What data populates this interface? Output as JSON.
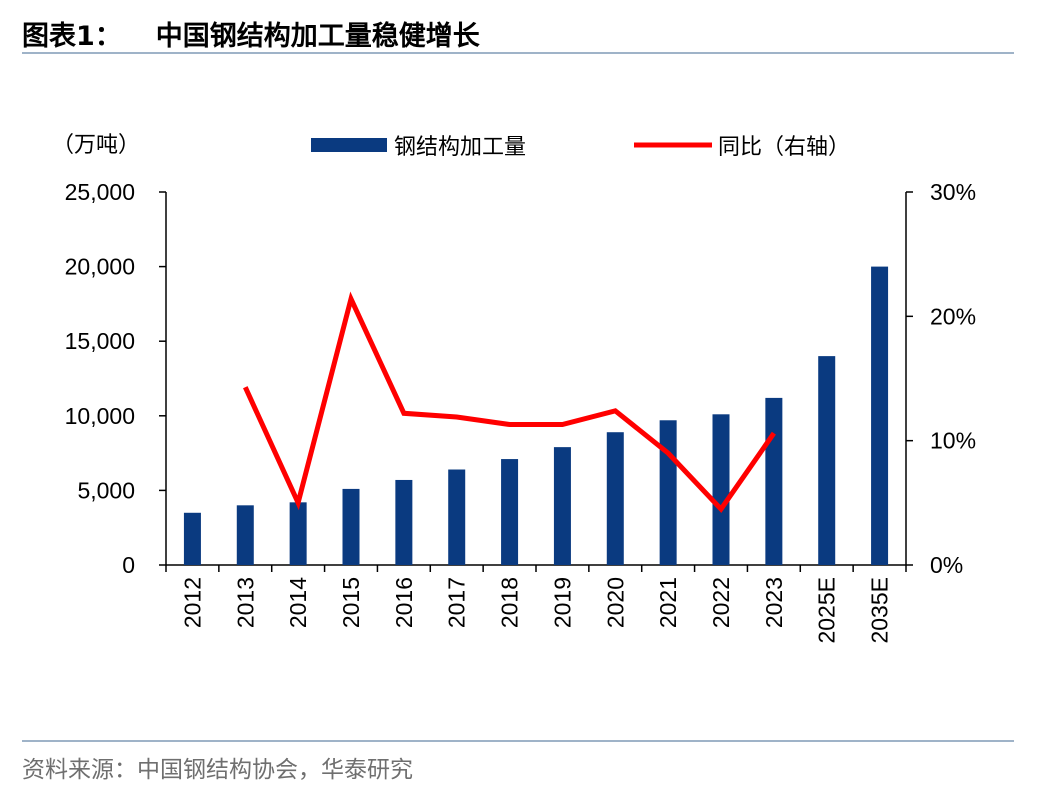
{
  "figure": {
    "title_prefix": "图表1：",
    "title": "中国钢结构加工量稳健增长",
    "source": "资料来源：中国钢结构协会，华泰研究"
  },
  "colors": {
    "bar": "#0a3a80",
    "line": "#ff0000",
    "axis": "#000000",
    "rule": "#9fb3c8",
    "source_text": "#6f6f6f"
  },
  "chart_data": {
    "type": "bar",
    "title": "中国钢结构加工量稳健增长",
    "categories": [
      "2012",
      "2013",
      "2014",
      "2015",
      "2016",
      "2017",
      "2018",
      "2019",
      "2020",
      "2021",
      "2022",
      "2023",
      "2025E",
      "2035E"
    ],
    "series": [
      {
        "name": "钢结构加工量",
        "type": "bar",
        "axis": "left",
        "values": [
          3500,
          4000,
          4200,
          5100,
          5700,
          6400,
          7100,
          7900,
          8900,
          9700,
          10100,
          11200,
          14000,
          20000
        ]
      },
      {
        "name": "同比（右轴）",
        "type": "line",
        "axis": "right",
        "values": [
          null,
          14.3,
          5.0,
          21.4,
          12.2,
          11.9,
          11.3,
          11.3,
          12.4,
          9.0,
          4.5,
          10.6,
          null,
          null
        ]
      }
    ],
    "left_axis": {
      "unit_label": "（万吨）",
      "min": 0,
      "max": 25000,
      "ticks": [
        0,
        5000,
        10000,
        15000,
        20000,
        25000
      ],
      "tick_labels": [
        "0",
        "5,000",
        "10,000",
        "15,000",
        "20,000",
        "25,000"
      ]
    },
    "right_axis": {
      "min": 0,
      "max": 30,
      "ticks": [
        0,
        10,
        20,
        30
      ],
      "tick_labels": [
        "0%",
        "10%",
        "20%",
        "30%"
      ]
    },
    "legend": {
      "position": "top",
      "entries": [
        "钢结构加工量",
        "同比（右轴）"
      ]
    },
    "grid": false
  }
}
